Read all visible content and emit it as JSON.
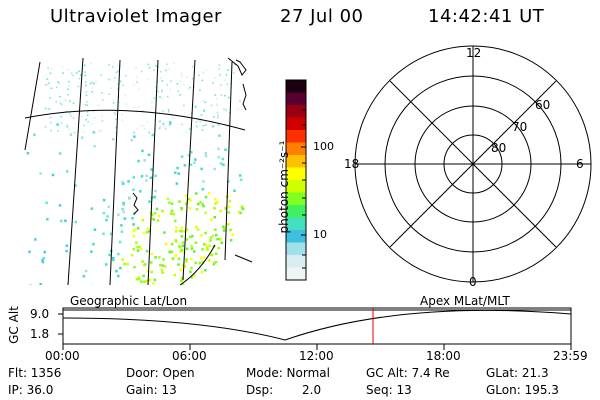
{
  "header": {
    "title": "Ultraviolet Imager",
    "date": "27 Jul 00",
    "time": "14:42:41 UT"
  },
  "colorbar": {
    "unit_label": "photon cm⁻²s⁻¹",
    "ticks": [
      "100",
      "10"
    ],
    "colors": [
      "#1a0010",
      "#5a0030",
      "#9a0010",
      "#d00000",
      "#ff3000",
      "#ff8000",
      "#ffc000",
      "#ffff00",
      "#d0ff00",
      "#80ff20",
      "#40f060",
      "#40e0c0",
      "#40c0e0",
      "#a0e0e8",
      "#d8eef0",
      "#f0f4f4"
    ]
  },
  "polar": {
    "clock_labels": {
      "top": "12",
      "left": "18",
      "right": "6",
      "bottom": "0"
    },
    "lat_labels": [
      "60",
      "70",
      "80"
    ]
  },
  "labels": {
    "geo": "Geographic Lat/Lon",
    "apex": "Apex MLat/MLT"
  },
  "timeline": {
    "ylabel": "GC Alt",
    "y_ticks": [
      "9.0",
      "1.8"
    ],
    "x_ticks": [
      "00:00",
      "06:00",
      "12:00",
      "18:00",
      "23:59"
    ],
    "marker_time": "14:42"
  },
  "info": {
    "flt": "Flt: 1356",
    "ip": "IP: 36.0",
    "door": "Door: Open",
    "gain": "Gain: 13",
    "mode": "Mode: Normal",
    "dsp_label": "Dsp:",
    "dsp_value": "2.0",
    "gc_alt": "GC Alt: 7.4 Re",
    "seq": "Seq: 13",
    "glat": "GLat: 21.3",
    "glon": "GLon: 195.3"
  }
}
